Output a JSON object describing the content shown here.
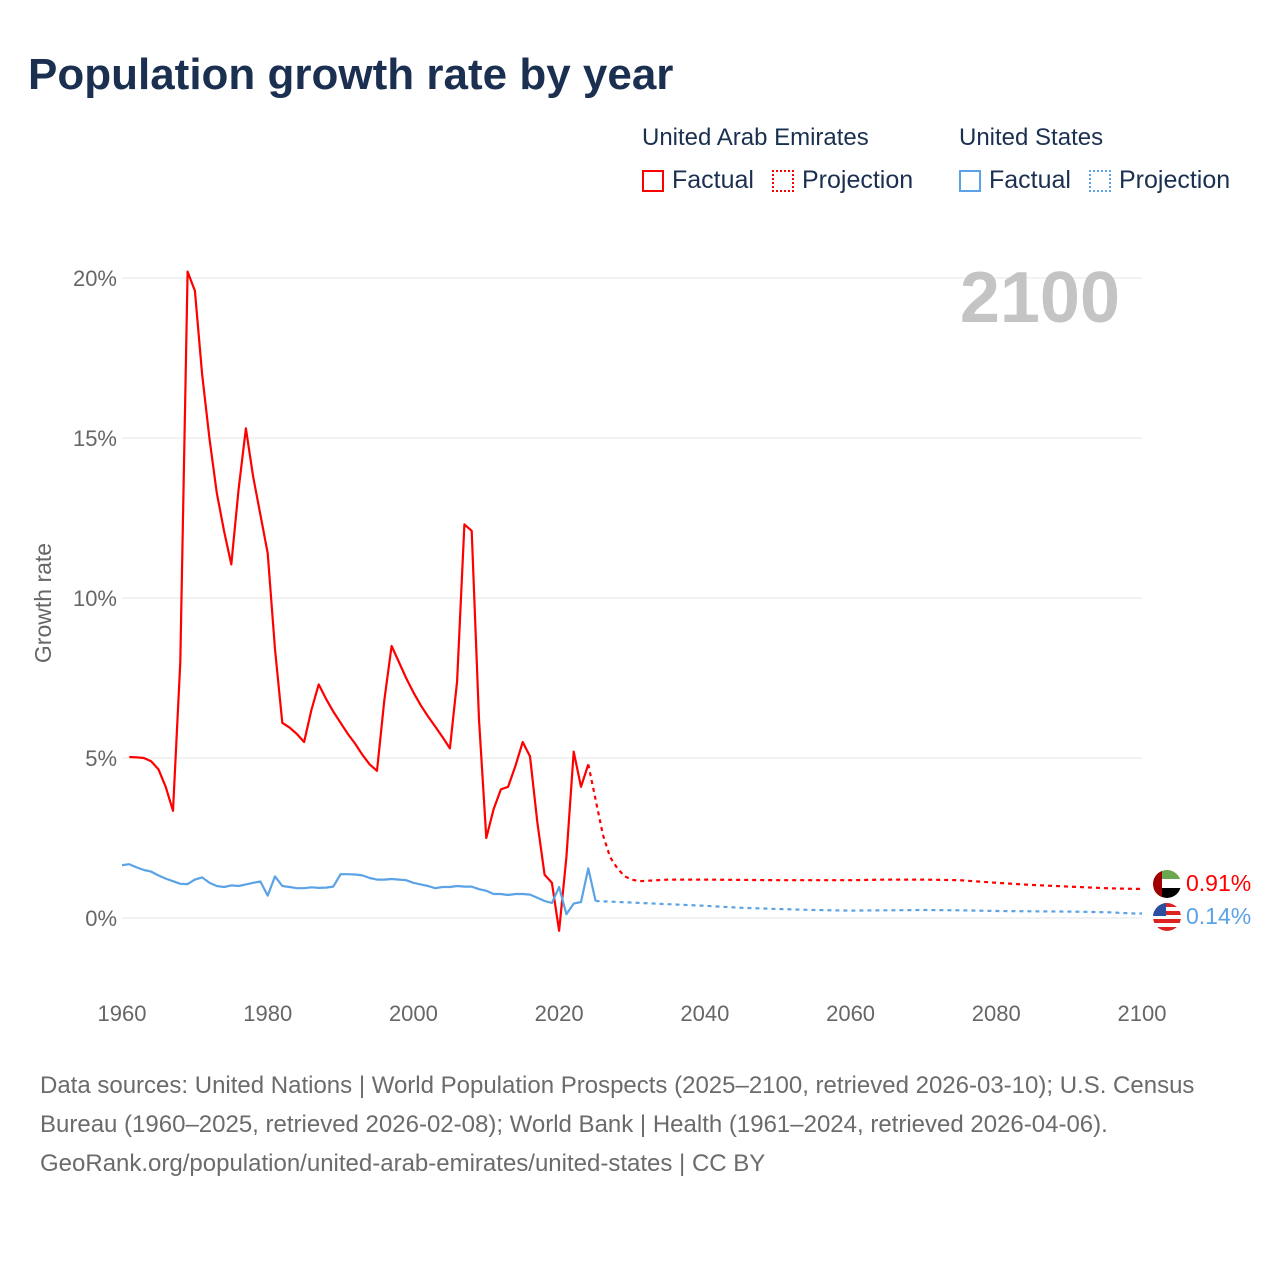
{
  "chart_data": {
    "type": "line",
    "title": "Population growth rate by year",
    "ylabel": "Growth rate",
    "xlabel": "",
    "xlim": [
      1960,
      2100
    ],
    "ylim": [
      -2,
      22
    ],
    "x_ticks": [
      "1960",
      "1980",
      "2000",
      "2020",
      "2040",
      "2060",
      "2080",
      "2100"
    ],
    "x_tick_values": [
      1960,
      1980,
      2000,
      2020,
      2040,
      2060,
      2080,
      2100
    ],
    "y_ticks": [
      "0%",
      "5%",
      "10%",
      "15%",
      "20%"
    ],
    "y_tick_values": [
      0,
      5,
      10,
      15,
      20
    ],
    "grid": true,
    "year_watermark": "2100",
    "legend_placement": "top-right",
    "series": [
      {
        "name": "United Arab Emirates",
        "color": "#ff0000",
        "end_label": "0.91%",
        "factual": {
          "label": "Factual",
          "x": [
            1961,
            1962,
            1963,
            1964,
            1965,
            1966,
            1967,
            1968,
            1969,
            1970,
            1971,
            1972,
            1973,
            1974,
            1975,
            1976,
            1977,
            1978,
            1979,
            1980,
            1981,
            1982,
            1983,
            1984,
            1985,
            1986,
            1987,
            1988,
            1989,
            1990,
            1991,
            1992,
            1993,
            1994,
            1995,
            1996,
            1997,
            1998,
            1999,
            2000,
            2001,
            2002,
            2003,
            2004,
            2005,
            2006,
            2007,
            2008,
            2009,
            2010,
            2011,
            2012,
            2013,
            2014,
            2015,
            2016,
            2017,
            2018,
            2019,
            2020,
            2021,
            2022,
            2023,
            2024
          ],
          "y": [
            5.03,
            5.02,
            5.0,
            4.9,
            4.65,
            4.1,
            3.35,
            8.0,
            20.2,
            19.6,
            17.0,
            15.0,
            13.3,
            12.1,
            11.05,
            13.4,
            15.3,
            13.8,
            12.6,
            11.4,
            8.4,
            6.1,
            5.95,
            5.75,
            5.5,
            6.5,
            7.3,
            6.85,
            6.45,
            6.1,
            5.75,
            5.45,
            5.1,
            4.8,
            4.6,
            6.8,
            8.5,
            8.0,
            7.5,
            7.05,
            6.65,
            6.3,
            5.98,
            5.65,
            5.3,
            7.4,
            12.3,
            12.1,
            6.2,
            2.5,
            3.4,
            4.02,
            4.1,
            4.75,
            5.5,
            5.05,
            3.0,
            1.35,
            1.1,
            -0.4,
            1.9,
            5.2,
            4.1,
            4.8
          ]
        },
        "projection": {
          "label": "Projection",
          "x": [
            2024,
            2025,
            2026,
            2027,
            2028,
            2029,
            2030,
            2031,
            2035,
            2040,
            2045,
            2050,
            2055,
            2060,
            2065,
            2070,
            2075,
            2080,
            2085,
            2090,
            2095,
            2099,
            2100
          ],
          "y": [
            4.8,
            3.7,
            2.6,
            1.9,
            1.55,
            1.3,
            1.2,
            1.15,
            1.2,
            1.2,
            1.19,
            1.18,
            1.18,
            1.18,
            1.2,
            1.2,
            1.18,
            1.1,
            1.03,
            0.98,
            0.93,
            0.91,
            0.91
          ]
        }
      },
      {
        "name": "United States",
        "color": "#5ba3e6",
        "end_label": "0.14%",
        "factual": {
          "label": "Factual",
          "x": [
            1960,
            1961,
            1962,
            1963,
            1964,
            1965,
            1966,
            1967,
            1968,
            1969,
            1970,
            1971,
            1972,
            1973,
            1974,
            1975,
            1976,
            1977,
            1978,
            1979,
            1980,
            1981,
            1982,
            1983,
            1984,
            1985,
            1986,
            1987,
            1988,
            1989,
            1990,
            1991,
            1992,
            1993,
            1994,
            1995,
            1996,
            1997,
            1998,
            1999,
            2000,
            2001,
            2002,
            2003,
            2004,
            2005,
            2006,
            2007,
            2008,
            2009,
            2010,
            2011,
            2012,
            2013,
            2014,
            2015,
            2016,
            2017,
            2018,
            2019,
            2020,
            2021,
            2022,
            2023,
            2024,
            2025
          ],
          "y": [
            1.65,
            1.68,
            1.58,
            1.5,
            1.45,
            1.33,
            1.23,
            1.15,
            1.07,
            1.06,
            1.2,
            1.27,
            1.1,
            1.0,
            0.97,
            1.02,
            1.0,
            1.05,
            1.1,
            1.14,
            0.7,
            1.3,
            1.0,
            0.97,
            0.93,
            0.93,
            0.96,
            0.94,
            0.95,
            0.98,
            1.37,
            1.37,
            1.36,
            1.33,
            1.25,
            1.2,
            1.2,
            1.22,
            1.2,
            1.18,
            1.1,
            1.05,
            1.0,
            0.93,
            0.97,
            0.97,
            1.0,
            0.98,
            0.98,
            0.9,
            0.85,
            0.75,
            0.75,
            0.72,
            0.75,
            0.75,
            0.73,
            0.63,
            0.53,
            0.47,
            0.97,
            0.12,
            0.45,
            0.5,
            1.55,
            0.53
          ]
        },
        "projection": {
          "label": "Projection",
          "x": [
            2025,
            2030,
            2035,
            2040,
            2045,
            2050,
            2055,
            2060,
            2065,
            2070,
            2075,
            2080,
            2085,
            2090,
            2095,
            2099,
            2100
          ],
          "y": [
            0.53,
            0.48,
            0.43,
            0.38,
            0.32,
            0.28,
            0.25,
            0.23,
            0.24,
            0.25,
            0.24,
            0.22,
            0.21,
            0.2,
            0.18,
            0.14,
            0.14
          ]
        }
      }
    ]
  },
  "legend": {
    "uae": {
      "name": "United Arab Emirates",
      "factual": "Factual",
      "projection": "Projection"
    },
    "us": {
      "name": "United States",
      "factual": "Factual",
      "projection": "Projection"
    }
  },
  "footer": {
    "sources": "Data sources: United Nations | World Population Prospects (2025–2100, retrieved 2026-03-10); U.S. Census Bureau (1960–2025, retrieved 2026-02-08); World Bank | Health (1961–2024, retrieved 2026-04-06).",
    "credit": "GeoRank.org/population/united-arab-emirates/united-states | CC BY"
  }
}
